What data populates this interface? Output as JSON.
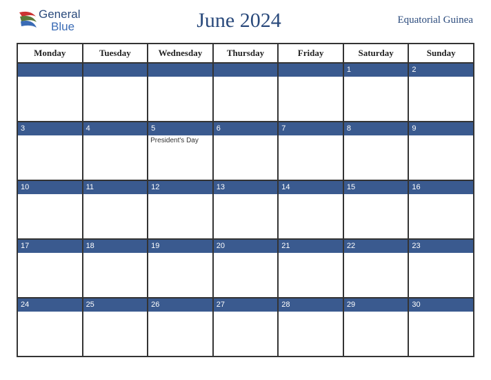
{
  "brand": {
    "line1": "General",
    "line2": "Blue"
  },
  "title": "June 2024",
  "country": "Equatorial Guinea",
  "colors": {
    "header_text": "#2a4a7c",
    "strip_bg": "#3a5a8f",
    "strip_text": "#ffffff",
    "border": "#333333",
    "logo_general": "#2a4a7c",
    "logo_blue": "#3a6bb5"
  },
  "day_names": [
    "Monday",
    "Tuesday",
    "Wednesday",
    "Thursday",
    "Friday",
    "Saturday",
    "Sunday"
  ],
  "weeks": [
    [
      {
        "date": "",
        "event": ""
      },
      {
        "date": "",
        "event": ""
      },
      {
        "date": "",
        "event": ""
      },
      {
        "date": "",
        "event": ""
      },
      {
        "date": "",
        "event": ""
      },
      {
        "date": "1",
        "event": ""
      },
      {
        "date": "2",
        "event": ""
      }
    ],
    [
      {
        "date": "3",
        "event": ""
      },
      {
        "date": "4",
        "event": ""
      },
      {
        "date": "5",
        "event": "President's Day"
      },
      {
        "date": "6",
        "event": ""
      },
      {
        "date": "7",
        "event": ""
      },
      {
        "date": "8",
        "event": ""
      },
      {
        "date": "9",
        "event": ""
      }
    ],
    [
      {
        "date": "10",
        "event": ""
      },
      {
        "date": "11",
        "event": ""
      },
      {
        "date": "12",
        "event": ""
      },
      {
        "date": "13",
        "event": ""
      },
      {
        "date": "14",
        "event": ""
      },
      {
        "date": "15",
        "event": ""
      },
      {
        "date": "16",
        "event": ""
      }
    ],
    [
      {
        "date": "17",
        "event": ""
      },
      {
        "date": "18",
        "event": ""
      },
      {
        "date": "19",
        "event": ""
      },
      {
        "date": "20",
        "event": ""
      },
      {
        "date": "21",
        "event": ""
      },
      {
        "date": "22",
        "event": ""
      },
      {
        "date": "23",
        "event": ""
      }
    ],
    [
      {
        "date": "24",
        "event": ""
      },
      {
        "date": "25",
        "event": ""
      },
      {
        "date": "26",
        "event": ""
      },
      {
        "date": "27",
        "event": ""
      },
      {
        "date": "28",
        "event": ""
      },
      {
        "date": "29",
        "event": ""
      },
      {
        "date": "30",
        "event": ""
      }
    ]
  ]
}
